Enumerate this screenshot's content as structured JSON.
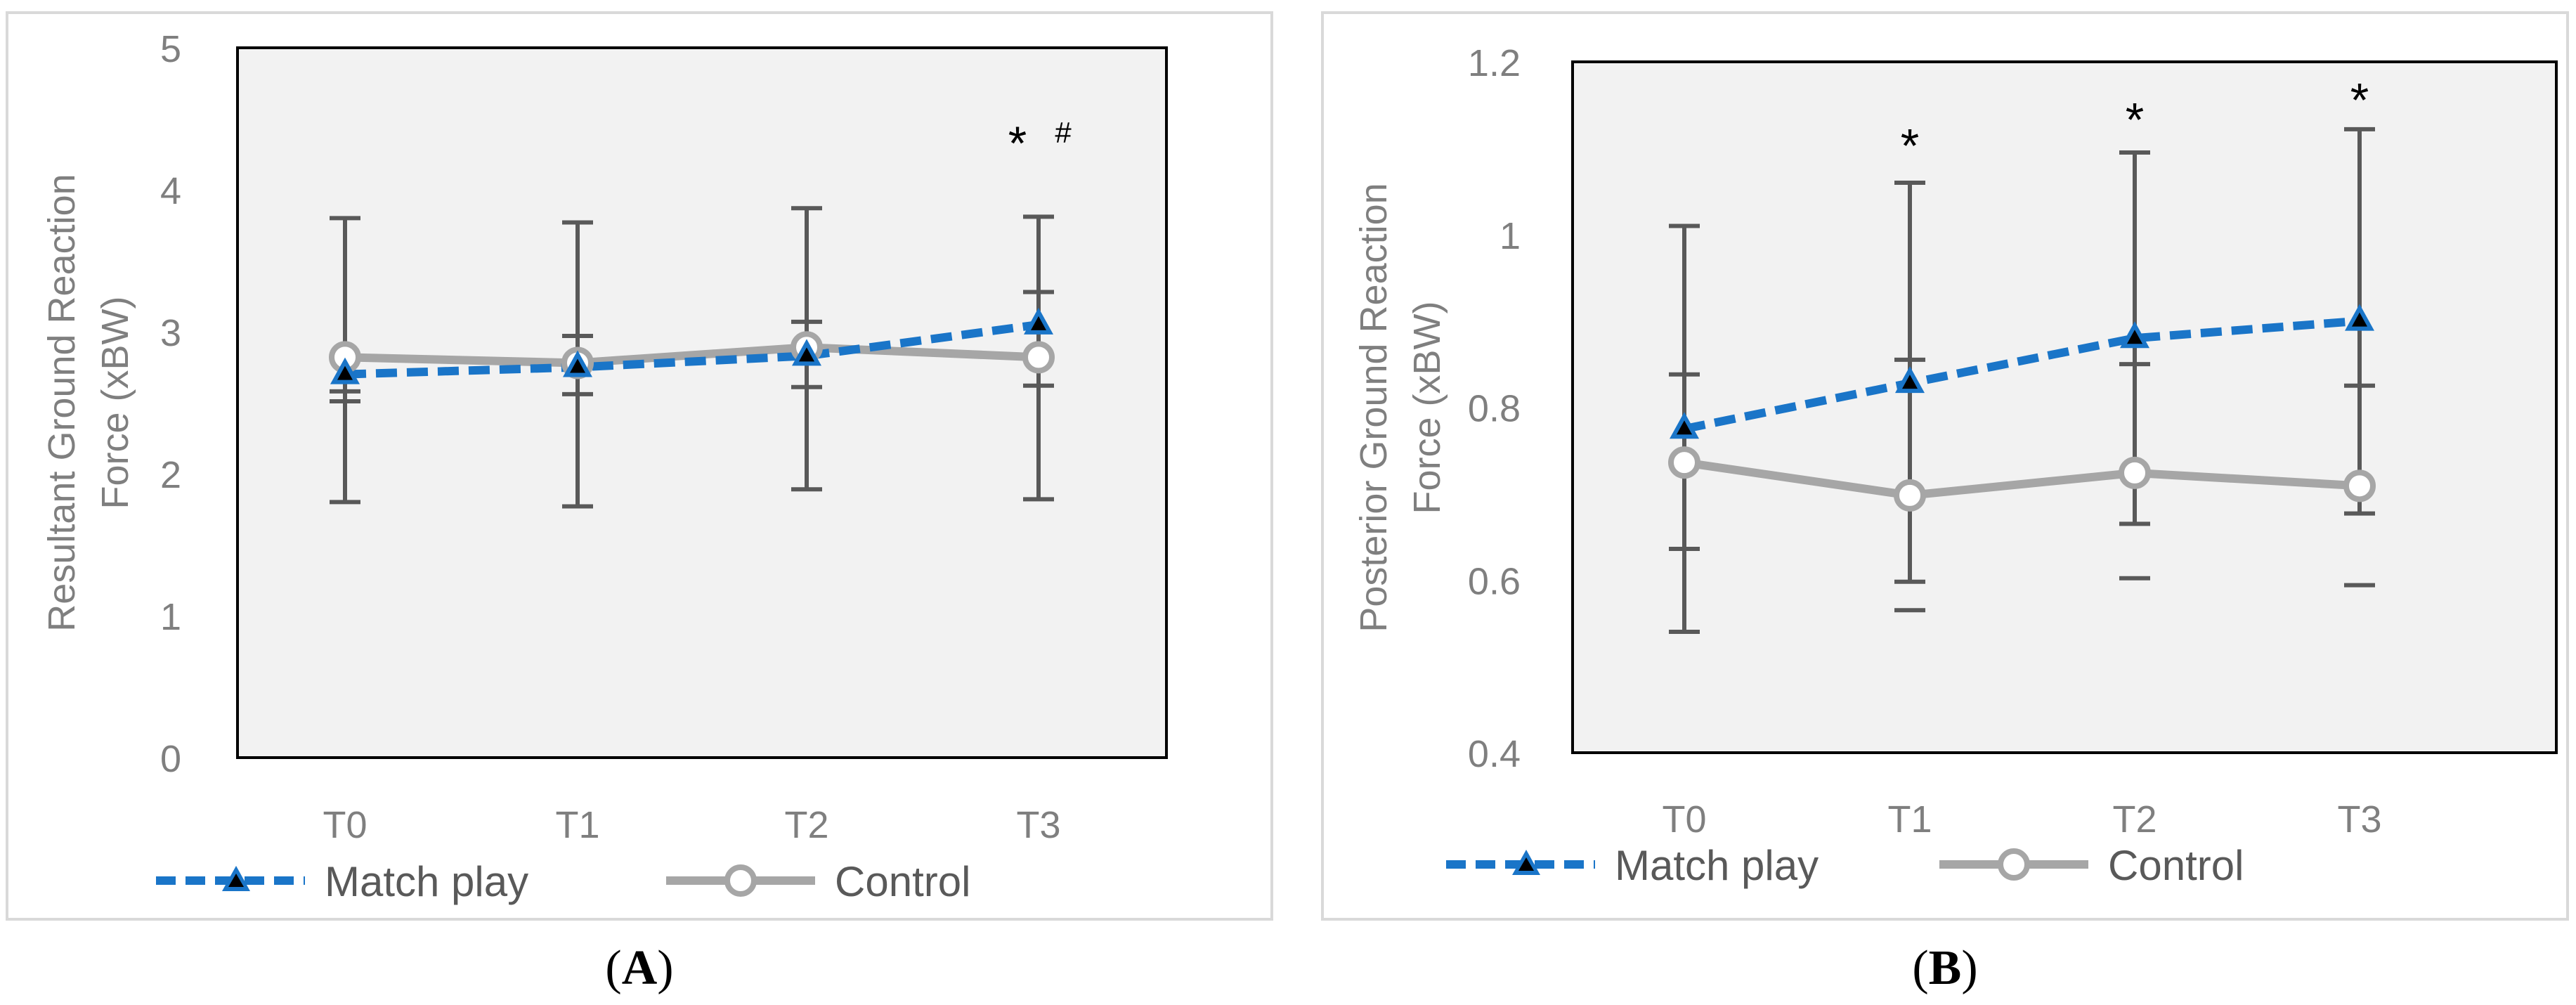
{
  "colors": {
    "match_play": "#1A75C8",
    "control": "#A6A6A6",
    "plot_bg": "#F2F2F2",
    "error_bar": "#595959",
    "axis_text": "#7F7F7F",
    "label_text": "#595959",
    "frame": "#D9D9D9"
  },
  "chart_data": [
    {
      "id": "A",
      "type": "line",
      "caption_letter": "A",
      "ylabel_line1": "Resultant Ground Reaction",
      "ylabel_line2": "Force (xBW)",
      "xlabel": "",
      "categories": [
        "T0",
        "T1",
        "T2",
        "T3"
      ],
      "ylim": [
        0,
        5
      ],
      "yticks": [
        0,
        1,
        2,
        3,
        4,
        5
      ],
      "ytick_labels": [
        "0",
        "1",
        "2",
        "3",
        "4",
        "5"
      ],
      "series": [
        {
          "name": "Match play",
          "values": [
            2.7,
            2.75,
            2.83,
            3.05
          ],
          "err_upper": [
            3.8,
            3.77,
            3.87,
            3.81
          ],
          "err_lower": [
            1.8,
            1.77,
            1.89,
            1.82
          ],
          "err_extra": [
            2.51,
            2.97,
            3.07,
            3.28
          ]
        },
        {
          "name": "Control",
          "values": [
            2.82,
            2.78,
            2.89,
            2.82
          ],
          "err_upper": [],
          "err_lower": [
            2.58,
            2.56,
            2.61,
            2.62
          ],
          "err_extra": []
        }
      ],
      "annotations": [
        {
          "category": "T3",
          "text": "*",
          "y": 4.4
        },
        {
          "category": "T3",
          "text": "#",
          "y": 4.42
        }
      ],
      "legend": [
        "Match play",
        "Control"
      ],
      "legend_position": "bottom"
    },
    {
      "id": "B",
      "type": "line",
      "caption_letter": "B",
      "ylabel_line1": "Posterior Ground Reaction",
      "ylabel_line2": "Force (xBW)",
      "xlabel": "",
      "categories": [
        "T0",
        "T1",
        "T2",
        "T3"
      ],
      "ylim": [
        0.4,
        1.2
      ],
      "yticks": [
        0.4,
        0.6,
        0.8,
        1.0,
        1.2
      ],
      "ytick_labels": [
        "0.4",
        "0.6",
        "0.8",
        "1",
        "1.2"
      ],
      "series": [
        {
          "name": "Match play",
          "values": [
            0.775,
            0.828,
            0.88,
            0.9
          ],
          "err_upper": [
            1.01,
            1.06,
            1.095,
            1.122
          ],
          "err_lower": [
            0.54,
            0.598,
            0.665,
            0.677
          ],
          "err_extra": [
            0.838,
            0.855,
            0.85,
            0.825
          ]
        },
        {
          "name": "Control",
          "values": [
            0.736,
            0.698,
            0.724,
            0.709
          ],
          "err_upper": [],
          "err_lower": [
            0.636,
            0.565,
            0.602,
            0.594
          ],
          "err_extra": []
        }
      ],
      "annotations": [
        {
          "category": "T1",
          "text": "*",
          "y": 1.115
        },
        {
          "category": "T2",
          "text": "*",
          "y": 1.145
        },
        {
          "category": "T3",
          "text": "*",
          "y": 1.168
        }
      ],
      "legend": [
        "Match play",
        "Control"
      ],
      "legend_position": "bottom"
    }
  ]
}
